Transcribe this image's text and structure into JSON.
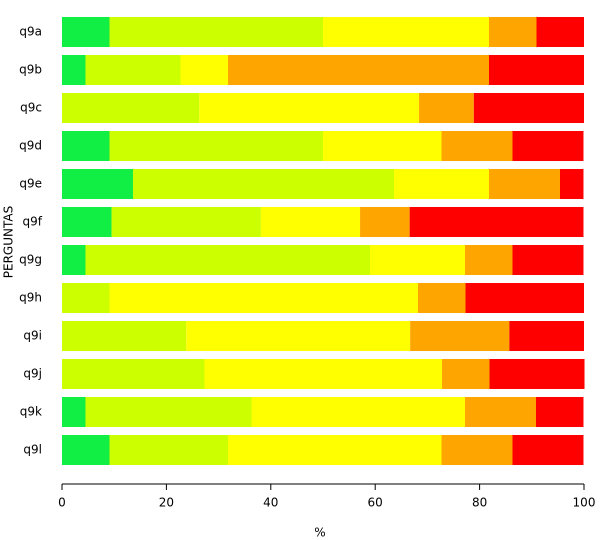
{
  "chart_data": {
    "type": "stacked-barh",
    "categories": [
      "q9a",
      "q9b",
      "q9c",
      "q9d",
      "q9e",
      "q9f",
      "q9g",
      "q9h",
      "q9i",
      "q9j",
      "q9k",
      "q9l"
    ],
    "series": [
      {
        "color": "#11ee44",
        "values": [
          9.1,
          4.5,
          0,
          9.1,
          13.6,
          9.5,
          4.5,
          0,
          0,
          0,
          4.5,
          9.1
        ]
      },
      {
        "color": "#ccff00",
        "values": [
          40.9,
          18.2,
          26.3,
          40.9,
          50,
          28.6,
          54.5,
          9.1,
          23.8,
          27.3,
          31.8,
          22.7
        ]
      },
      {
        "color": "#ffff00",
        "values": [
          31.8,
          9.1,
          42.1,
          22.7,
          18.2,
          19.0,
          18.2,
          59.1,
          42.9,
          45.5,
          40.9,
          40.9
        ]
      },
      {
        "color": "#ffa500",
        "values": [
          9.1,
          50,
          10.5,
          13.6,
          13.6,
          9.5,
          9.1,
          9.1,
          19.0,
          9.1,
          13.6,
          13.6
        ]
      },
      {
        "color": "#ff0000",
        "values": [
          9.1,
          18.2,
          21.1,
          13.6,
          4.5,
          33.3,
          13.6,
          22.7,
          14.3,
          18.2,
          9.1,
          13.6
        ]
      }
    ],
    "xlabel": "%",
    "ylabel": "PERGUNTAS",
    "xlim": [
      0,
      100
    ],
    "xticks": [
      0,
      20,
      40,
      60,
      80,
      100
    ]
  }
}
